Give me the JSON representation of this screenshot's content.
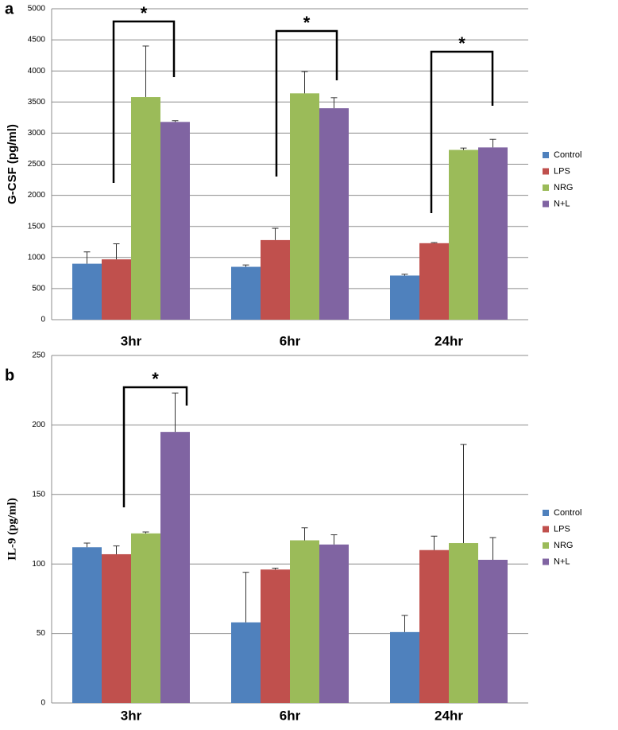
{
  "chart_data": [
    {
      "type": "bar",
      "panel_label": "a",
      "ylabel": "G-CSF (pg/ml)",
      "categories": [
        "3hr",
        "6hr",
        "24hr"
      ],
      "series": [
        {
          "name": "Control",
          "color": "#4f81bd",
          "values": [
            900,
            850,
            710
          ],
          "errors": [
            190,
            30,
            20
          ]
        },
        {
          "name": "LPS",
          "color": "#c0504d",
          "values": [
            970,
            1280,
            1230
          ],
          "errors": [
            250,
            190,
            10
          ]
        },
        {
          "name": "NRG",
          "color": "#9bbb59",
          "values": [
            3580,
            3640,
            2730
          ],
          "errors": [
            820,
            350,
            30
          ]
        },
        {
          "name": "N+L",
          "color": "#8064a2",
          "values": [
            3180,
            3400,
            2770
          ],
          "errors": [
            20,
            170,
            130
          ]
        }
      ],
      "ylim": [
        0,
        5000
      ],
      "yticks": [
        0,
        500,
        1000,
        1500,
        2000,
        2500,
        3000,
        3500,
        4000,
        4500,
        5000
      ],
      "grid": true,
      "legend": "right",
      "annotations": [
        "*",
        "*",
        "*"
      ]
    },
    {
      "type": "bar",
      "panel_label": "b",
      "ylabel": "IL-9 (pg/ml)",
      "categories": [
        "3hr",
        "6hr",
        "24hr"
      ],
      "series": [
        {
          "name": "Control",
          "color": "#4f81bd",
          "values": [
            112,
            58,
            51
          ],
          "errors": [
            3,
            36,
            12
          ]
        },
        {
          "name": "LPS",
          "color": "#c0504d",
          "values": [
            107,
            96,
            110
          ],
          "errors": [
            6,
            1,
            10
          ]
        },
        {
          "name": "NRG",
          "color": "#9bbb59",
          "values": [
            122,
            117,
            115
          ],
          "errors": [
            1,
            9,
            71
          ]
        },
        {
          "name": "N+L",
          "color": "#8064a2",
          "values": [
            195,
            114,
            103
          ],
          "errors": [
            28,
            7,
            16
          ]
        }
      ],
      "ylim": [
        0,
        250
      ],
      "yticks": [
        0,
        50,
        100,
        150,
        200,
        250
      ],
      "grid": true,
      "legend": "right",
      "annotations": [
        "*"
      ]
    }
  ]
}
